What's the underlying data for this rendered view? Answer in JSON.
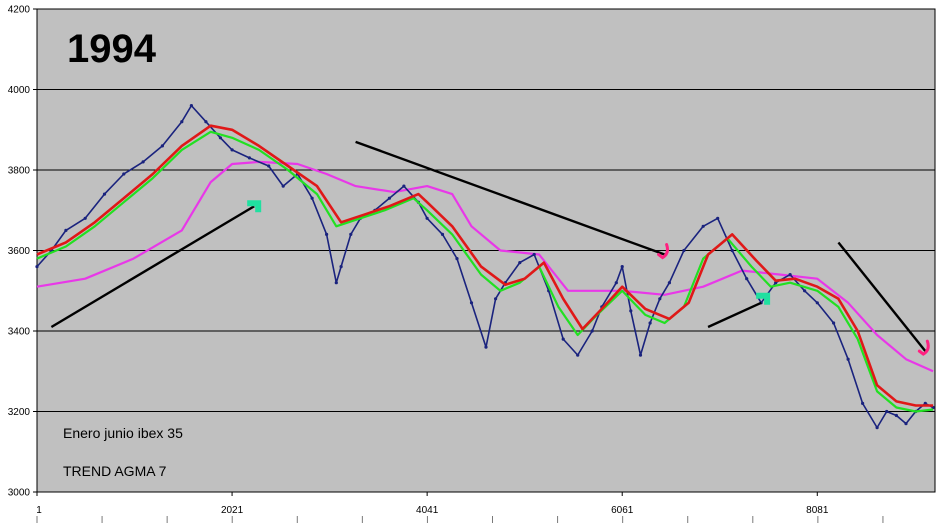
{
  "chart_data": {
    "type": "line",
    "title": "1994",
    "annotations": [
      "Enero junio ibex 35",
      "TREND AGMA 7"
    ],
    "xlabel": "",
    "ylabel": "",
    "xlim": [
      1,
      9300
    ],
    "ylim": [
      3000,
      4200
    ],
    "yticks": [
      3000,
      3200,
      3400,
      3600,
      3800,
      4000,
      4200
    ],
    "xticks": [
      1,
      2021,
      4041,
      6061,
      8081
    ],
    "grid": "horizontal",
    "legend": "none",
    "background": "#c0c0c0",
    "series": [
      {
        "key": "price",
        "color": "#1a237e",
        "x": [
          1,
          150,
          300,
          500,
          700,
          900,
          1100,
          1300,
          1500,
          1600,
          1750,
          1900,
          2021,
          2200,
          2400,
          2550,
          2700,
          2850,
          3000,
          3100,
          3150,
          3250,
          3350,
          3500,
          3650,
          3800,
          3950,
          4041,
          4200,
          4350,
          4500,
          4650,
          4750,
          4850,
          5000,
          5150,
          5300,
          5450,
          5600,
          5750,
          5850,
          6000,
          6061,
          6150,
          6250,
          6350,
          6450,
          6550,
          6700,
          6900,
          7050,
          7200,
          7350,
          7500,
          7650,
          7800,
          7950,
          8081,
          8250,
          8400,
          8550,
          8700,
          8800,
          8900,
          9000,
          9100,
          9200,
          9280
        ],
        "y": [
          3560,
          3600,
          3650,
          3680,
          3740,
          3790,
          3820,
          3860,
          3920,
          3960,
          3920,
          3880,
          3850,
          3830,
          3810,
          3760,
          3790,
          3730,
          3640,
          3520,
          3560,
          3640,
          3680,
          3700,
          3730,
          3760,
          3720,
          3680,
          3640,
          3580,
          3470,
          3360,
          3480,
          3520,
          3570,
          3590,
          3500,
          3380,
          3340,
          3400,
          3460,
          3520,
          3560,
          3450,
          3340,
          3420,
          3480,
          3520,
          3600,
          3660,
          3680,
          3600,
          3530,
          3470,
          3520,
          3540,
          3500,
          3470,
          3420,
          3330,
          3220,
          3160,
          3200,
          3190,
          3170,
          3200,
          3220,
          3210
        ]
      },
      {
        "key": "ma_green",
        "color": "#22e022",
        "x": [
          1,
          300,
          600,
          900,
          1200,
          1500,
          1800,
          2021,
          2300,
          2600,
          2900,
          3100,
          3350,
          3600,
          3900,
          4041,
          4300,
          4600,
          4800,
          5000,
          5200,
          5400,
          5600,
          5800,
          6061,
          6300,
          6500,
          6700,
          6900,
          7150,
          7400,
          7600,
          7800,
          8081,
          8300,
          8500,
          8700,
          8900,
          9100,
          9280
        ],
        "y": [
          3580,
          3610,
          3660,
          3720,
          3780,
          3850,
          3895,
          3880,
          3850,
          3800,
          3740,
          3660,
          3680,
          3700,
          3730,
          3700,
          3640,
          3540,
          3500,
          3520,
          3560,
          3460,
          3390,
          3440,
          3500,
          3440,
          3420,
          3460,
          3580,
          3630,
          3560,
          3510,
          3520,
          3500,
          3460,
          3380,
          3250,
          3210,
          3200,
          3205
        ]
      },
      {
        "key": "ma_red",
        "color": "#e01818",
        "x": [
          1,
          300,
          600,
          900,
          1200,
          1500,
          1800,
          2021,
          2300,
          2600,
          2900,
          3150,
          3400,
          3650,
          3950,
          4041,
          4300,
          4600,
          4850,
          5050,
          5250,
          5450,
          5650,
          5850,
          6061,
          6300,
          6550,
          6750,
          6950,
          7200,
          7450,
          7650,
          7850,
          8081,
          8300,
          8500,
          8700,
          8900,
          9100,
          9280
        ],
        "y": [
          3590,
          3620,
          3670,
          3730,
          3790,
          3860,
          3910,
          3900,
          3860,
          3810,
          3760,
          3670,
          3690,
          3710,
          3740,
          3720,
          3660,
          3560,
          3515,
          3530,
          3570,
          3480,
          3405,
          3455,
          3510,
          3455,
          3430,
          3470,
          3590,
          3640,
          3575,
          3525,
          3530,
          3510,
          3480,
          3400,
          3265,
          3225,
          3215,
          3215
        ]
      },
      {
        "key": "ma_magenta",
        "color": "#e838e8",
        "x": [
          1,
          500,
          1000,
          1500,
          1800,
          2021,
          2300,
          2700,
          3000,
          3300,
          3700,
          4041,
          4300,
          4500,
          4800,
          5200,
          5500,
          6061,
          6500,
          6900,
          7300,
          7700,
          8081,
          8400,
          8700,
          9000,
          9280
        ],
        "y": [
          3510,
          3530,
          3580,
          3650,
          3770,
          3815,
          3820,
          3815,
          3790,
          3760,
          3745,
          3760,
          3740,
          3660,
          3600,
          3590,
          3500,
          3500,
          3490,
          3510,
          3550,
          3540,
          3530,
          3470,
          3390,
          3330,
          3300
        ]
      }
    ],
    "trendlines": [
      {
        "key": "trend-up-1",
        "color": "#000000",
        "x": [
          150,
          2250
        ],
        "y": [
          3410,
          3710
        ]
      },
      {
        "key": "trend-down-1",
        "color": "#000000",
        "x": [
          3300,
          6500
        ],
        "y": [
          3870,
          3590
        ]
      },
      {
        "key": "trend-up-2",
        "color": "#000000",
        "x": [
          6950,
          7500
        ],
        "y": [
          3410,
          3470
        ]
      },
      {
        "key": "trend-down-2",
        "color": "#000000",
        "x": [
          8300,
          9200
        ],
        "y": [
          3620,
          3350
        ]
      }
    ],
    "markers": [
      {
        "key": "green-marker-1",
        "color": "#20e0a0",
        "x": 2250,
        "y": 3710
      },
      {
        "key": "green-marker-2",
        "color": "#20e0a0",
        "x": 7520,
        "y": 3480
      },
      {
        "key": "pink-hook-1",
        "color": "#ff2080",
        "x": 6500,
        "y": 3590
      },
      {
        "key": "pink-hook-2",
        "color": "#ff2080",
        "x": 9200,
        "y": 3350
      }
    ]
  }
}
